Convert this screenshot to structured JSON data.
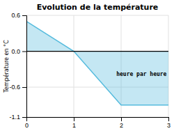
{
  "chart_data": {
    "type": "area",
    "title": "Evolution de la température",
    "ylabel": "Température en °C",
    "x": [
      0,
      1,
      2,
      2.5,
      3
    ],
    "values": [
      0.5,
      0.0,
      -0.9,
      -0.9,
      -0.9
    ],
    "color": "#55bbdd",
    "xlim": [
      0,
      3
    ],
    "ylim": [
      -1.1,
      0.6
    ],
    "xticks": [
      0,
      1,
      2,
      3
    ],
    "yticks": [
      -1.1,
      -0.6,
      {
        "value": 0.0,
        "label": "0.0"
      },
      0.6
    ],
    "grid": true,
    "annotations": [
      {
        "text": "heure par heure",
        "x": 1.9,
        "y": -0.38
      }
    ]
  }
}
